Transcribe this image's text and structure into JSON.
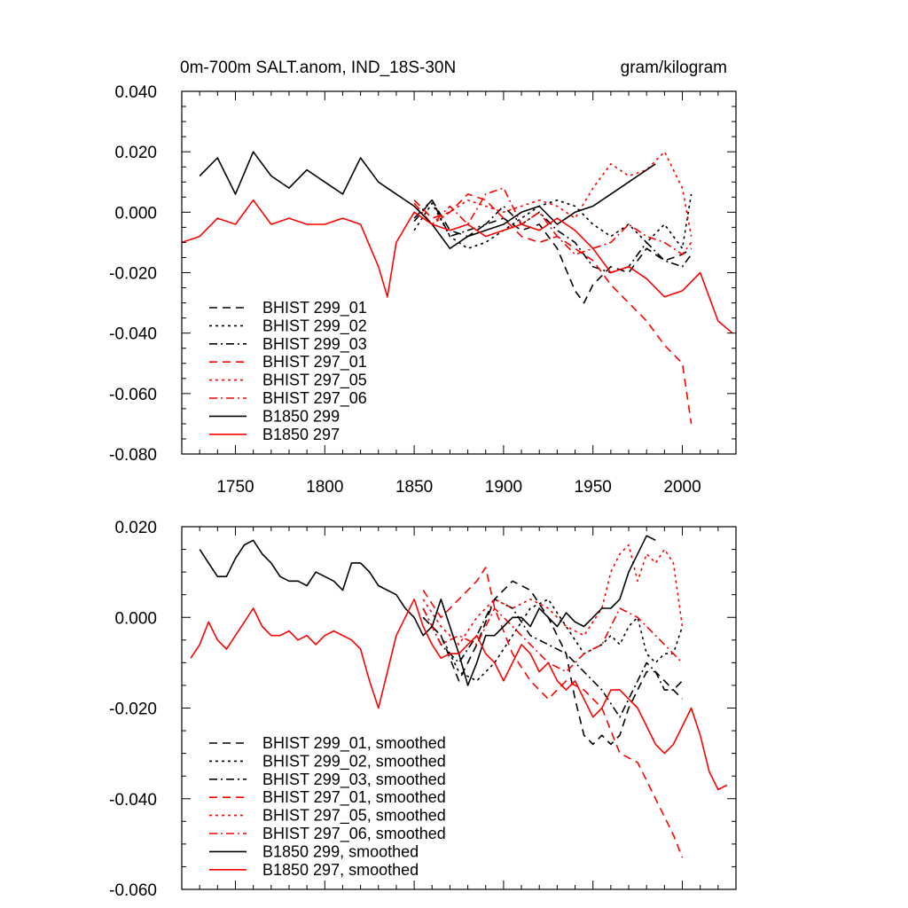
{
  "colors": {
    "black": "#000000",
    "red": "#ff0000"
  },
  "chart_data": [
    {
      "type": "line",
      "title": "0m-700m SALT.anom, IND_18S-30N",
      "units": "gram/kilogram",
      "xlim": [
        1720,
        2030
      ],
      "ylim": [
        -0.08,
        0.04
      ],
      "xticks": [
        1750,
        1800,
        1850,
        1900,
        1950,
        2000
      ],
      "yticks": [
        0.04,
        0.02,
        0.0,
        -0.02,
        -0.04,
        -0.06,
        -0.08
      ],
      "ytick_labels": [
        "0.040",
        "0.020",
        "0.000",
        "-0.020",
        "-0.040",
        "-0.060",
        "-0.080"
      ],
      "grid": false,
      "legend_position": "bottom-left",
      "series": [
        {
          "name": "BHIST 299_01",
          "color": "#000000",
          "dash": "dash",
          "x": [
            1850,
            1860,
            1870,
            1880,
            1890,
            1900,
            1910,
            1920,
            1930,
            1940,
            1945,
            1950,
            1960,
            1970,
            1980,
            1990,
            2000,
            2005
          ],
          "y": [
            -0.003,
            0.004,
            -0.006,
            -0.008,
            -0.004,
            -0.002,
            -0.006,
            -0.004,
            -0.012,
            -0.026,
            -0.03,
            -0.024,
            -0.018,
            -0.02,
            -0.012,
            -0.016,
            -0.014,
            -0.012
          ]
        },
        {
          "name": "BHIST 299_02",
          "color": "#000000",
          "dash": "dot",
          "x": [
            1850,
            1860,
            1870,
            1880,
            1890,
            1900,
            1910,
            1920,
            1930,
            1940,
            1950,
            1960,
            1970,
            1980,
            1990,
            2000,
            2005
          ],
          "y": [
            -0.006,
            0.003,
            -0.008,
            -0.012,
            -0.01,
            -0.006,
            -0.002,
            0.002,
            0.004,
            0.002,
            -0.004,
            -0.008,
            -0.004,
            -0.01,
            -0.004,
            -0.012,
            0.006
          ]
        },
        {
          "name": "BHIST 299_03",
          "color": "#000000",
          "dash": "dashdot",
          "x": [
            1850,
            1860,
            1870,
            1880,
            1890,
            1900,
            1910,
            1920,
            1930,
            1940,
            1950,
            1960,
            1970,
            1980,
            1990,
            2000,
            2005
          ],
          "y": [
            -0.002,
            0.004,
            -0.008,
            -0.006,
            -0.004,
            0.002,
            -0.004,
            0.0,
            -0.006,
            -0.01,
            -0.018,
            -0.02,
            -0.018,
            -0.01,
            -0.016,
            -0.018,
            -0.014
          ]
        },
        {
          "name": "BHIST 297_01",
          "color": "#ff0000",
          "dash": "dash",
          "x": [
            1850,
            1860,
            1870,
            1880,
            1890,
            1900,
            1910,
            1920,
            1930,
            1940,
            1950,
            1960,
            1970,
            1980,
            1990,
            2000,
            2005
          ],
          "y": [
            0.004,
            -0.002,
            0.0,
            0.006,
            0.004,
            -0.002,
            -0.008,
            -0.01,
            -0.008,
            -0.012,
            -0.016,
            -0.024,
            -0.03,
            -0.036,
            -0.044,
            -0.05,
            -0.07
          ]
        },
        {
          "name": "BHIST 297_05",
          "color": "#ff0000",
          "dash": "dot",
          "x": [
            1850,
            1860,
            1870,
            1880,
            1890,
            1900,
            1910,
            1920,
            1930,
            1940,
            1950,
            1960,
            1970,
            1980,
            1990,
            2000,
            2005
          ],
          "y": [
            0.002,
            -0.004,
            0.0,
            0.004,
            0.002,
            0.0,
            0.002,
            0.004,
            0.002,
            -0.002,
            0.008,
            0.016,
            0.012,
            0.014,
            0.02,
            0.008,
            -0.008
          ]
        },
        {
          "name": "BHIST 297_06",
          "color": "#ff0000",
          "dash": "dashdot",
          "x": [
            1850,
            1860,
            1870,
            1880,
            1890,
            1900,
            1910,
            1920,
            1930,
            1940,
            1950,
            1960,
            1970,
            1980,
            1990,
            2000,
            2005
          ],
          "y": [
            0.003,
            -0.004,
            0.002,
            -0.004,
            0.006,
            0.008,
            -0.004,
            0.0,
            -0.008,
            -0.014,
            -0.012,
            -0.01,
            -0.004,
            -0.008,
            -0.01,
            -0.014,
            -0.01
          ]
        },
        {
          "name": "B1850 299",
          "color": "#000000",
          "dash": "solid",
          "x": [
            1730,
            1740,
            1750,
            1760,
            1770,
            1780,
            1790,
            1800,
            1810,
            1820,
            1830,
            1840,
            1850,
            1860,
            1870,
            1880,
            1890,
            1900,
            1910,
            1920,
            1930,
            1940,
            1950,
            1960,
            1970,
            1980,
            1985
          ],
          "y": [
            0.012,
            0.018,
            0.006,
            0.02,
            0.012,
            0.008,
            0.014,
            0.01,
            0.006,
            0.018,
            0.01,
            0.006,
            0.002,
            -0.004,
            -0.012,
            -0.008,
            -0.006,
            -0.004,
            0.0,
            0.002,
            -0.004,
            0.0,
            0.002,
            0.006,
            0.01,
            0.014,
            0.016
          ]
        },
        {
          "name": "B1850 297",
          "color": "#ff0000",
          "dash": "solid",
          "x": [
            1720,
            1730,
            1740,
            1750,
            1760,
            1770,
            1780,
            1790,
            1800,
            1810,
            1820,
            1830,
            1835,
            1840,
            1850,
            1860,
            1870,
            1880,
            1890,
            1900,
            1910,
            1920,
            1930,
            1940,
            1950,
            1960,
            1970,
            1980,
            1990,
            2000,
            2010,
            2020,
            2028
          ],
          "y": [
            -0.01,
            -0.008,
            -0.002,
            -0.004,
            0.004,
            -0.004,
            -0.002,
            -0.004,
            -0.004,
            -0.002,
            -0.004,
            -0.018,
            -0.028,
            -0.01,
            0.0,
            -0.004,
            -0.006,
            -0.004,
            -0.008,
            -0.006,
            -0.004,
            -0.006,
            -0.002,
            -0.006,
            -0.012,
            -0.02,
            -0.018,
            -0.022,
            -0.028,
            -0.026,
            -0.02,
            -0.036,
            -0.04
          ]
        }
      ]
    },
    {
      "type": "line",
      "title": "",
      "xlim": [
        1720,
        2030
      ],
      "ylim": [
        -0.06,
        0.02
      ],
      "xticks": [
        1750,
        1800,
        1850,
        1900,
        1950,
        2000
      ],
      "yticks": [
        0.02,
        0.0,
        -0.02,
        -0.04,
        -0.06
      ],
      "ytick_labels": [
        "0.020",
        "0.000",
        "-0.020",
        "-0.040",
        "-0.060"
      ],
      "grid": false,
      "legend_position": "bottom-left",
      "series": [
        {
          "name": "BHIST 299_01, smoothed",
          "color": "#000000",
          "dash": "dash",
          "x": [
            1855,
            1865,
            1875,
            1885,
            1895,
            1905,
            1915,
            1925,
            1935,
            1940,
            1945,
            1950,
            1955,
            1960,
            1965,
            1970,
            1975,
            1980,
            1985,
            1990,
            1995,
            2000
          ],
          "y": [
            0.0,
            -0.004,
            -0.014,
            -0.006,
            0.004,
            0.008,
            0.006,
            0.0,
            -0.008,
            -0.018,
            -0.026,
            -0.028,
            -0.026,
            -0.028,
            -0.026,
            -0.02,
            -0.016,
            -0.012,
            -0.012,
            -0.014,
            -0.016,
            -0.018
          ]
        },
        {
          "name": "BHIST 299_02, smoothed",
          "color": "#000000",
          "dash": "dot",
          "x": [
            1855,
            1865,
            1875,
            1885,
            1895,
            1905,
            1915,
            1925,
            1935,
            1945,
            1955,
            1960,
            1965,
            1970,
            1975,
            1980,
            1985,
            1990,
            1995,
            2000
          ],
          "y": [
            0.0,
            -0.004,
            -0.012,
            -0.014,
            -0.01,
            -0.004,
            0.002,
            0.004,
            -0.002,
            -0.008,
            -0.006,
            -0.004,
            -0.006,
            -0.002,
            0.0,
            -0.008,
            -0.01,
            -0.008,
            -0.008,
            -0.002
          ]
        },
        {
          "name": "BHIST 299_03, smoothed",
          "color": "#000000",
          "dash": "dashdot",
          "x": [
            1855,
            1865,
            1875,
            1885,
            1895,
            1905,
            1915,
            1925,
            1935,
            1945,
            1955,
            1965,
            1970,
            1975,
            1980,
            1985,
            1990,
            1995,
            2000
          ],
          "y": [
            0.002,
            -0.006,
            -0.01,
            -0.004,
            0.004,
            0.002,
            -0.004,
            -0.006,
            -0.008,
            -0.012,
            -0.016,
            -0.022,
            -0.018,
            -0.014,
            -0.01,
            -0.012,
            -0.016,
            -0.016,
            -0.014
          ]
        },
        {
          "name": "BHIST 297_01, smoothed",
          "color": "#ff0000",
          "dash": "dash",
          "x": [
            1855,
            1865,
            1875,
            1885,
            1890,
            1895,
            1905,
            1915,
            1925,
            1935,
            1945,
            1955,
            1965,
            1975,
            1985,
            1990,
            1995,
            2000
          ],
          "y": [
            0.006,
            0.0,
            0.004,
            0.008,
            0.011,
            0.002,
            -0.008,
            -0.014,
            -0.018,
            -0.014,
            -0.016,
            -0.02,
            -0.03,
            -0.032,
            -0.04,
            -0.044,
            -0.048,
            -0.053
          ]
        },
        {
          "name": "BHIST 297_05, smoothed",
          "color": "#ff0000",
          "dash": "dot",
          "x": [
            1855,
            1865,
            1875,
            1885,
            1895,
            1905,
            1915,
            1925,
            1935,
            1945,
            1955,
            1960,
            1965,
            1970,
            1975,
            1980,
            1985,
            1990,
            1995,
            2000
          ],
          "y": [
            0.004,
            -0.002,
            -0.006,
            0.0,
            0.004,
            0.002,
            0.004,
            0.002,
            -0.002,
            -0.004,
            0.002,
            0.01,
            0.014,
            0.016,
            0.008,
            0.014,
            0.012,
            0.015,
            0.012,
            -0.002
          ]
        },
        {
          "name": "BHIST 297_06, smoothed",
          "color": "#ff0000",
          "dash": "dashdot",
          "x": [
            1855,
            1865,
            1875,
            1885,
            1895,
            1905,
            1915,
            1925,
            1935,
            1945,
            1955,
            1965,
            1975,
            1985,
            1990,
            1995,
            2000
          ],
          "y": [
            0.002,
            -0.006,
            -0.004,
            -0.006,
            0.002,
            -0.002,
            -0.006,
            -0.01,
            -0.012,
            -0.008,
            -0.006,
            0.002,
            0.0,
            -0.004,
            -0.006,
            -0.008,
            -0.01
          ]
        },
        {
          "name": "B1850 299, smoothed",
          "color": "#000000",
          "dash": "solid",
          "x": [
            1730,
            1735,
            1740,
            1745,
            1750,
            1755,
            1760,
            1765,
            1770,
            1775,
            1780,
            1785,
            1790,
            1795,
            1800,
            1805,
            1810,
            1815,
            1820,
            1825,
            1830,
            1835,
            1840,
            1845,
            1850,
            1855,
            1860,
            1865,
            1870,
            1875,
            1880,
            1885,
            1890,
            1895,
            1900,
            1905,
            1910,
            1915,
            1920,
            1925,
            1930,
            1935,
            1940,
            1945,
            1950,
            1955,
            1960,
            1965,
            1970,
            1975,
            1980,
            1985
          ],
          "y": [
            0.015,
            0.012,
            0.009,
            0.009,
            0.013,
            0.016,
            0.017,
            0.014,
            0.012,
            0.009,
            0.008,
            0.008,
            0.007,
            0.01,
            0.009,
            0.008,
            0.006,
            0.012,
            0.012,
            0.01,
            0.007,
            0.006,
            0.005,
            0.002,
            0.0,
            -0.004,
            -0.002,
            0.004,
            -0.002,
            -0.008,
            -0.015,
            -0.01,
            -0.004,
            -0.004,
            -0.002,
            0.0,
            0.0,
            -0.002,
            0.002,
            0.0,
            -0.002,
            0.001,
            -0.001,
            -0.002,
            0.0,
            0.002,
            0.002,
            0.004,
            0.01,
            0.014,
            0.018,
            0.017
          ]
        },
        {
          "name": "B1850 297, smoothed",
          "color": "#ff0000",
          "dash": "solid",
          "x": [
            1725,
            1730,
            1735,
            1740,
            1745,
            1750,
            1755,
            1760,
            1765,
            1770,
            1775,
            1780,
            1785,
            1790,
            1795,
            1800,
            1805,
            1810,
            1815,
            1820,
            1825,
            1830,
            1835,
            1840,
            1845,
            1850,
            1855,
            1860,
            1865,
            1870,
            1875,
            1880,
            1885,
            1890,
            1895,
            1900,
            1905,
            1910,
            1915,
            1920,
            1925,
            1930,
            1935,
            1940,
            1945,
            1950,
            1955,
            1960,
            1965,
            1970,
            1975,
            1980,
            1985,
            1990,
            1995,
            2000,
            2005,
            2010,
            2015,
            2020,
            2025
          ],
          "y": [
            -0.009,
            -0.006,
            -0.001,
            -0.005,
            -0.007,
            -0.004,
            -0.001,
            0.002,
            -0.002,
            -0.004,
            -0.004,
            -0.003,
            -0.005,
            -0.004,
            -0.006,
            -0.004,
            -0.003,
            -0.004,
            -0.005,
            -0.007,
            -0.014,
            -0.02,
            -0.012,
            -0.004,
            0.0,
            0.004,
            -0.002,
            -0.006,
            -0.009,
            -0.008,
            -0.008,
            -0.006,
            -0.004,
            -0.008,
            -0.01,
            -0.014,
            -0.01,
            -0.006,
            -0.008,
            -0.012,
            -0.01,
            -0.014,
            -0.016,
            -0.014,
            -0.018,
            -0.022,
            -0.02,
            -0.016,
            -0.016,
            -0.018,
            -0.02,
            -0.024,
            -0.028,
            -0.03,
            -0.028,
            -0.024,
            -0.02,
            -0.026,
            -0.034,
            -0.038,
            -0.037
          ]
        }
      ]
    }
  ]
}
